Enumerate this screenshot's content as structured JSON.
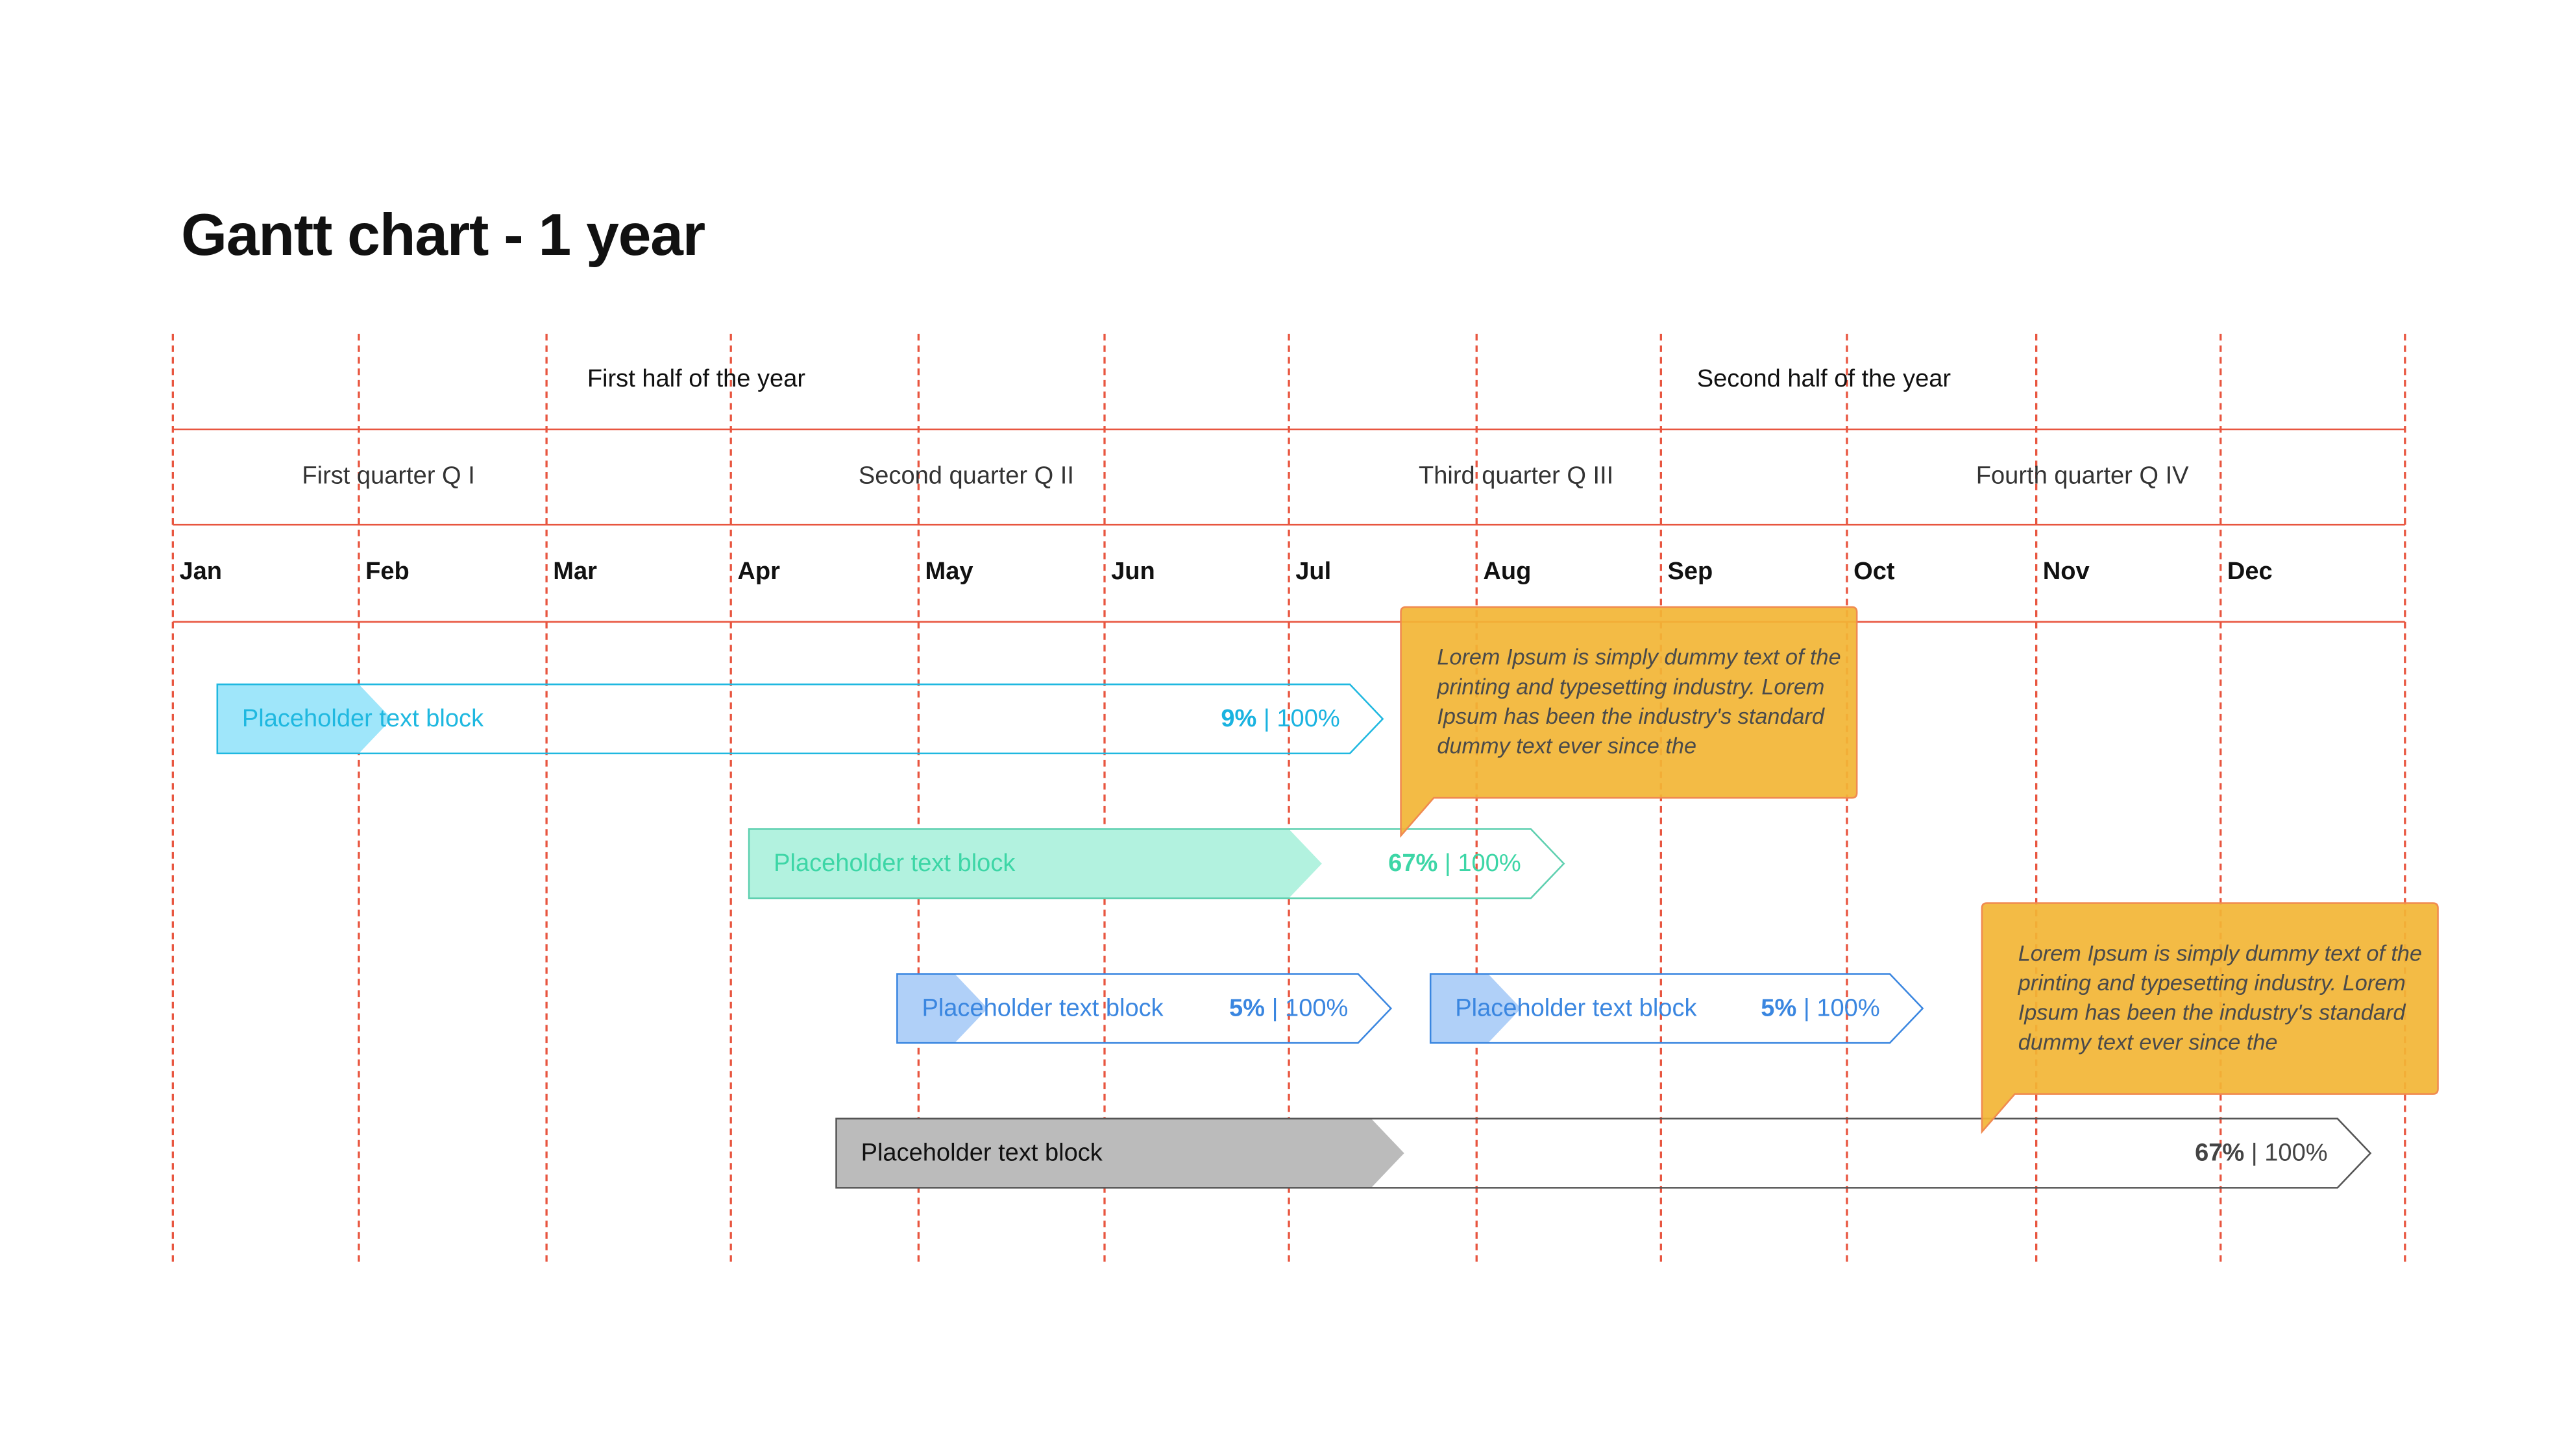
{
  "title": "Gantt chart - 1 year",
  "halves": [
    "First half of the year",
    "Second half of the year"
  ],
  "quarters": [
    "First quarter Q I",
    "Second quarter Q II",
    "Third quarter Q III",
    "Fourth quarter Q IV"
  ],
  "months": [
    "Jan",
    "Feb",
    "Mar",
    "Apr",
    "May",
    "Jun",
    "Jul",
    "Aug",
    "Sep",
    "Oct",
    "Nov",
    "Dec"
  ],
  "colors": {
    "grid": "#e8553f",
    "callout": "#f2b535",
    "cyan": "#1fb8e0",
    "green": "#3dd6a6",
    "blue": "#3a86e0",
    "gray": "#555555"
  },
  "tasks": [
    {
      "label": "Placeholder text block",
      "progress_value": "9%",
      "total": "100%",
      "progress": 0.09,
      "color": "cyan"
    },
    {
      "label": "Placeholder text block",
      "progress_value": "67%",
      "total": "100%",
      "progress": 0.67,
      "color": "green"
    },
    {
      "label": "Placeholder text block",
      "progress_value": "5%",
      "total": "100%",
      "progress": 0.05,
      "color": "blue"
    },
    {
      "label": "Placeholder text block",
      "progress_value": "5%",
      "total": "100%",
      "progress": 0.05,
      "color": "blue"
    },
    {
      "label": "Placeholder text block",
      "progress_value": "67%",
      "total": "100%",
      "progress": 0.67,
      "color": "gray"
    }
  ],
  "callouts": [
    {
      "text": "Lorem Ipsum is simply dummy text of the printing and typesetting industry. Lorem Ipsum has been the industry's standard dummy text ever since the"
    },
    {
      "text": "Lorem Ipsum is simply dummy text of the printing and typesetting industry. Lorem Ipsum has been the industry's standard dummy text ever since the"
    }
  ]
}
